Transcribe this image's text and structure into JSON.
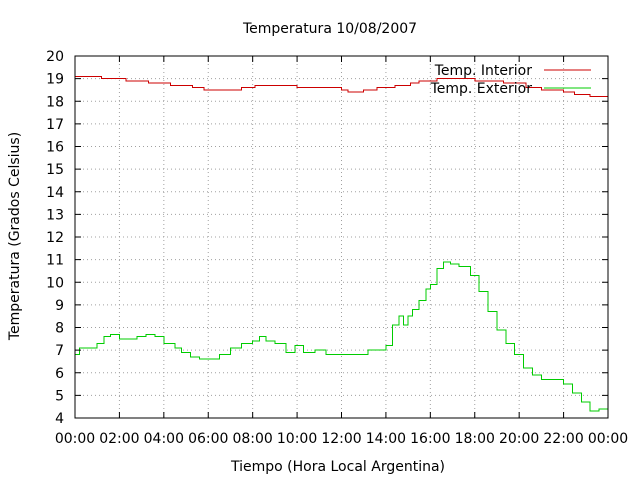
{
  "chart_data": {
    "type": "line",
    "title": "Temperatura 10/08/2007",
    "xlabel": "Tiempo (Hora Local Argentina)",
    "ylabel": "Temperatura (Grados Celsius)",
    "xlim": [
      0,
      24
    ],
    "ylim": [
      4,
      20
    ],
    "grid": true,
    "legend": "top-right",
    "x_ticks": [
      "00:00",
      "02:00",
      "04:00",
      "06:00",
      "08:00",
      "10:00",
      "12:00",
      "14:00",
      "16:00",
      "18:00",
      "20:00",
      "22:00",
      "00:00"
    ],
    "y_ticks": [
      "4",
      "5",
      "6",
      "7",
      "8",
      "9",
      "10",
      "11",
      "12",
      "13",
      "14",
      "15",
      "16",
      "17",
      "18",
      "19",
      "20"
    ],
    "series": [
      {
        "name": "Temp. Interior",
        "color": "#cc0000",
        "x": [
          0,
          1.2,
          2.3,
          3.3,
          4.3,
          5.3,
          5.8,
          7.5,
          8.1,
          9.0,
          10.0,
          12.0,
          12.3,
          13.0,
          13.6,
          14.4,
          15.1,
          15.5,
          16.3,
          18.0,
          19.3,
          20.3,
          21.0,
          22.0,
          22.5,
          23.2,
          24.0
        ],
        "y": [
          19.1,
          19.0,
          18.9,
          18.8,
          18.7,
          18.6,
          18.5,
          18.6,
          18.7,
          18.7,
          18.6,
          18.5,
          18.4,
          18.5,
          18.6,
          18.7,
          18.8,
          18.9,
          19.0,
          18.9,
          18.8,
          18.6,
          18.5,
          18.4,
          18.3,
          18.2,
          18.1
        ]
      },
      {
        "name": "Temp. Exterior",
        "color": "#00cc00",
        "x": [
          0,
          0.2,
          0.5,
          1.0,
          1.3,
          1.6,
          2.0,
          2.3,
          2.8,
          3.2,
          3.6,
          4.0,
          4.5,
          4.8,
          5.2,
          5.6,
          6.0,
          6.5,
          7.0,
          7.5,
          8.0,
          8.3,
          8.6,
          9.0,
          9.5,
          9.9,
          10.3,
          10.8,
          11.3,
          12.0,
          12.4,
          12.8,
          13.2,
          13.6,
          14.0,
          14.3,
          14.6,
          14.8,
          15.0,
          15.2,
          15.5,
          15.8,
          16.0,
          16.3,
          16.6,
          16.9,
          17.3,
          17.8,
          18.2,
          18.6,
          19.0,
          19.4,
          19.8,
          20.2,
          20.6,
          21.0,
          21.4,
          22.0,
          22.4,
          22.8,
          23.2,
          23.6,
          24.0
        ],
        "y": [
          6.8,
          7.1,
          7.1,
          7.3,
          7.6,
          7.7,
          7.5,
          7.5,
          7.6,
          7.7,
          7.6,
          7.3,
          7.1,
          6.9,
          6.7,
          6.6,
          6.6,
          6.8,
          7.1,
          7.3,
          7.4,
          7.6,
          7.4,
          7.3,
          6.9,
          7.2,
          6.9,
          7.0,
          6.8,
          6.8,
          6.8,
          6.8,
          7.0,
          7.0,
          7.2,
          8.1,
          8.5,
          8.1,
          8.5,
          8.8,
          9.2,
          9.7,
          9.9,
          10.6,
          10.9,
          10.8,
          10.7,
          10.3,
          9.6,
          8.7,
          7.9,
          7.3,
          6.8,
          6.2,
          5.9,
          5.7,
          5.7,
          5.5,
          5.1,
          4.7,
          4.3,
          4.4,
          4.6
        ]
      }
    ]
  }
}
